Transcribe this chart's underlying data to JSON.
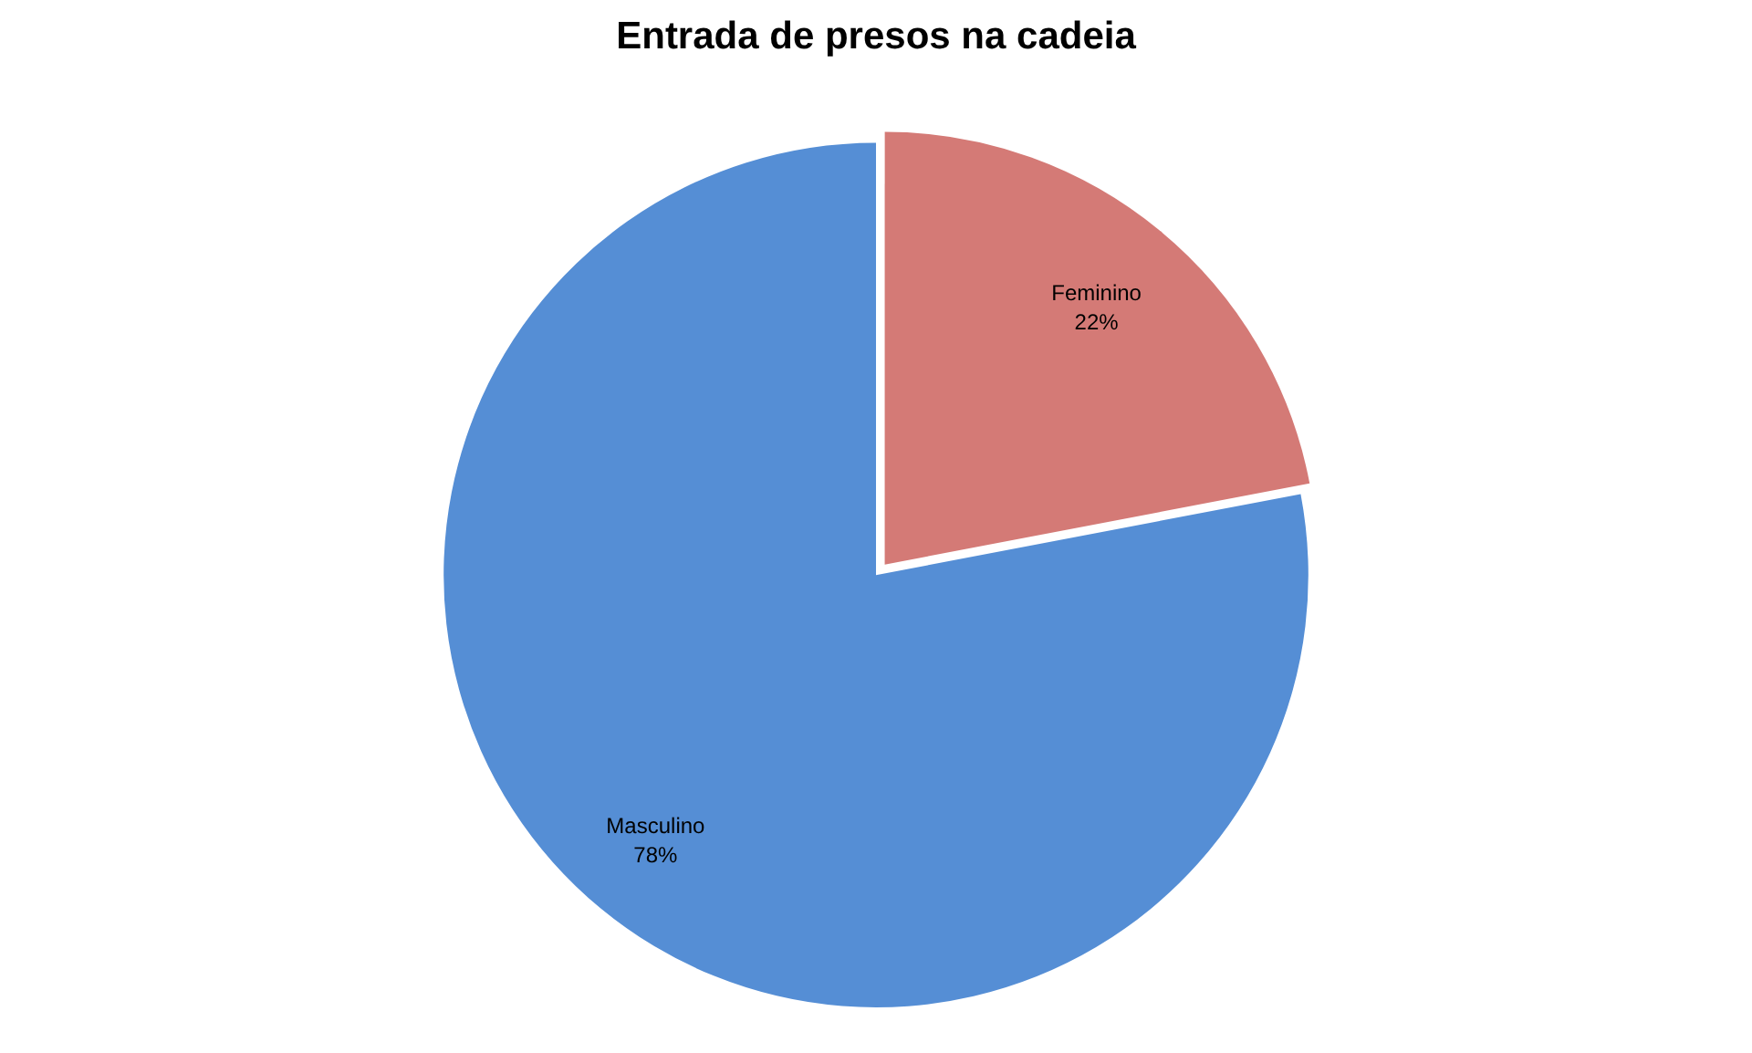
{
  "chart_data": {
    "type": "pie",
    "title": "Entrada de presos na cadeia",
    "categories": [
      "Feminino",
      "Masculino"
    ],
    "values": [
      22,
      78
    ],
    "value_labels": [
      "22%",
      "78%"
    ],
    "colors": [
      "#d47a76",
      "#558ed5"
    ],
    "legend": false
  }
}
